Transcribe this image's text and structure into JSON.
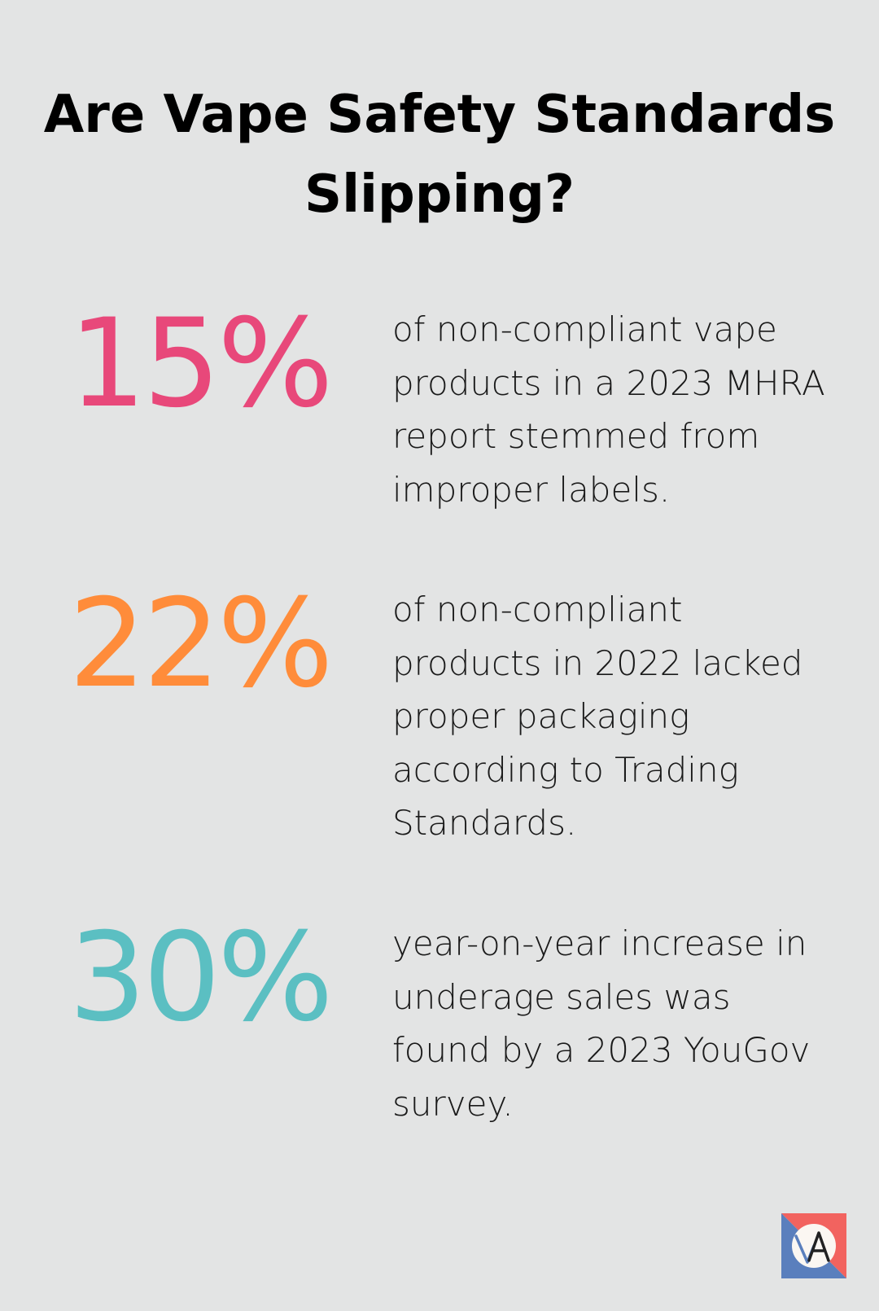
{
  "title": "Are Vape Safety Standards Slipping?",
  "stats": [
    {
      "value": "15%",
      "text": "of non-compliant vape products in a 2023 MHRA report stemmed from improper labels.",
      "color": "#e8487a"
    },
    {
      "value": "22%",
      "text": "of non-compliant products in 2022 lacked proper packaging according to Trading Standards.",
      "color": "#ff8c3a"
    },
    {
      "value": "30%",
      "text": "year-on-year increase in underage sales was found by a 2023 YouGov survey.",
      "color": "#5bbfc2"
    }
  ],
  "logo": {
    "icon": "brand-logo-icon",
    "colors": {
      "red": "#f2635f",
      "blue": "#5a7fbd",
      "circle": "#fbf7f2",
      "stroke": "#222222"
    }
  }
}
